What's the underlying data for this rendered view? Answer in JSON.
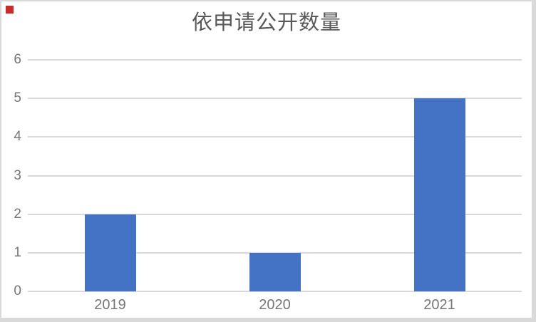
{
  "window": {
    "background_color": "#ffffff",
    "frame_color": "#d9d9d9"
  },
  "marker": {
    "label": "red-square",
    "color": "#cc2b2b"
  },
  "chart_data": {
    "type": "bar",
    "title": "依申请公开数量",
    "categories": [
      "2019",
      "2020",
      "2021"
    ],
    "values": [
      2,
      1,
      5
    ],
    "xlabel": "",
    "ylabel": "",
    "ylim": [
      0,
      6
    ],
    "yticks": [
      "0",
      "1",
      "2",
      "3",
      "4",
      "5",
      "6"
    ],
    "grid": "horizontal",
    "legend_position": "none",
    "bar_color": "#4472c4",
    "gridline_color": "#d9d9d9",
    "axis_line_color": "#d9d9d9",
    "title_color": "#595959",
    "tick_label_color": "#767676"
  }
}
